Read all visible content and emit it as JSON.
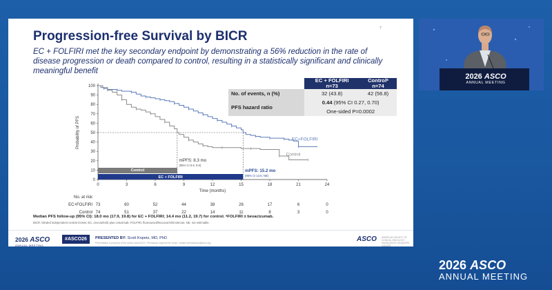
{
  "slide": {
    "title": "Progression-free Survival by BICR",
    "page_marker": "7",
    "subtitle": "EC + FOLFIRI met the key secondary endpoint by demonstrating a 56% reduction in the rate of disease progression or death compared to control, resulting in a statistically significant and clinically meaningful benefit"
  },
  "events_table": {
    "col1": "EC + FOLFIRI",
    "col1_n": "n=73",
    "col2": "Controlᵃ",
    "col2_n": "n=74",
    "row1_label": "No. of events, n (%)",
    "row1_col1": "32 (43.8)",
    "row1_col2": "42 (56.8)",
    "row2_label": "PFS hazard ratio",
    "row2_hr": "0.44",
    "row2_ci": " (95% CI 0.27, 0.70)",
    "row3_text": "One-sided P=0.0002"
  },
  "km_plot": {
    "ylabel": "Probability of PFS",
    "xlabel": "Time (months)",
    "ec_label": "EC+FOLFIRI",
    "control_label": "Control",
    "bar_control": "Control",
    "bar_ec": "EC + FOLFIRI",
    "mpfs_control": "mPFS: 8.3 mo",
    "mpfs_control_ci": "(95% CI 6.9, 9.8)",
    "mpfs_ec": "mPFS: 15.2 mo",
    "mpfs_ec_ci": "(95% CI 13.6, NE)",
    "at_risk_title": "No. at risk",
    "colors": {
      "ec": "#5b7ab8",
      "control": "#8a8a8a",
      "bar_control": "#7a7a7a",
      "bar_ec": "#1f3a8a",
      "ref": "#555555"
    }
  },
  "chart_data": {
    "type": "line",
    "title": "",
    "xlabel": "Time (months)",
    "ylabel": "Probability of PFS",
    "xlim": [
      0,
      24
    ],
    "ylim": [
      0,
      100
    ],
    "xticks": [
      0,
      3,
      6,
      9,
      12,
      15,
      18,
      21,
      24
    ],
    "yticks": [
      0,
      10,
      20,
      30,
      40,
      50,
      60,
      70,
      80,
      90,
      100
    ],
    "series": [
      {
        "name": "EC+FOLFIRI",
        "x": [
          0,
          0.3,
          0.6,
          1.0,
          1.5,
          2.0,
          2.5,
          3.0,
          3.5,
          4.0,
          4.5,
          5.0,
          5.5,
          6.0,
          6.5,
          7.0,
          7.5,
          8.0,
          8.5,
          9.0,
          9.5,
          10.0,
          10.5,
          11.0,
          11.5,
          12.0,
          12.5,
          13.0,
          13.5,
          14.0,
          14.5,
          15.0,
          15.2,
          15.5,
          16.0,
          16.5,
          17.0,
          17.5,
          18.0,
          18.5,
          19.0,
          19.5,
          20.0,
          20.5,
          21.0,
          22.0,
          23.0
        ],
        "y": [
          100,
          98,
          97,
          96,
          96,
          95,
          94,
          94,
          93,
          91,
          89,
          88,
          87,
          86,
          85,
          84,
          83,
          81,
          79,
          77,
          75,
          73,
          71,
          69,
          67,
          65,
          63,
          61,
          59,
          57,
          55,
          53,
          50,
          48,
          47,
          46,
          45,
          45,
          44,
          44,
          44,
          43,
          42,
          41,
          35,
          35,
          35
        ]
      },
      {
        "name": "Control",
        "x": [
          0,
          0.5,
          1.0,
          1.5,
          2.0,
          2.5,
          3.0,
          3.5,
          4.0,
          4.5,
          5.0,
          5.5,
          6.0,
          6.5,
          7.0,
          7.5,
          8.0,
          8.3,
          8.5,
          9.0,
          9.5,
          10.0,
          10.5,
          11.0,
          11.5,
          12.0,
          13.0,
          14.0,
          15.0,
          16.0,
          17.0,
          18.0,
          19.0,
          20.0,
          21.0,
          22.0
        ],
        "y": [
          100,
          98,
          95,
          93,
          90,
          85,
          80,
          77,
          75,
          74,
          72,
          70,
          67,
          64,
          61,
          57,
          54,
          50,
          48,
          45,
          42,
          40,
          38,
          36,
          35,
          34,
          34,
          34,
          33,
          33,
          32,
          32,
          25,
          21,
          21,
          21
        ]
      }
    ]
  },
  "at_risk": {
    "rows": [
      {
        "label": "EC+FOLFIRI",
        "values": [
          "73",
          "60",
          "52",
          "44",
          "38",
          "26",
          "17",
          "6",
          "0"
        ]
      },
      {
        "label": "Control",
        "values": [
          "74",
          "51",
          "37",
          "22",
          "14",
          "11",
          "8",
          "3",
          "0"
        ]
      }
    ]
  },
  "footnotes": {
    "line1": "Median PFS follow-up (95% CI): 18.0 mo (17.9, 19.8) for EC + FOLFIRI; 14.4 mo (11.2, 19.7) for control. ᵃFOLFIRI ± bevacizumab.",
    "line2": "BICR, blinded independent central review; EC, encorafenib plus cetuximab; FOLFIRI, fluorouracil/leucovorin/irinotecan; NE, not estimable."
  },
  "footer": {
    "logo_year": "2026",
    "logo_name": "ASCO",
    "logo_sub": "ANNUAL MEETING",
    "hashtag": "#ASCO26",
    "presented_label": "PRESENTED BY:",
    "presenter": "Scott Kopetz, MD, PhD",
    "note": "Presentation is property of the author and ASCO. Permission required for reuse; contact permissions@asco.org",
    "right_logo": "ASCO",
    "right_sub": "AMERICAN SOCIETY OF CLINICAL ONCOLOGY · KNOWLEDGE CONQUERS CANCER"
  },
  "video": {
    "logo_year": "2026",
    "logo_name": "ASCO",
    "logo_sub": "ANNUAL MEETING"
  },
  "corner_logo": {
    "year": "2026",
    "name": "ASCO",
    "sub": "ANNUAL MEETING"
  }
}
